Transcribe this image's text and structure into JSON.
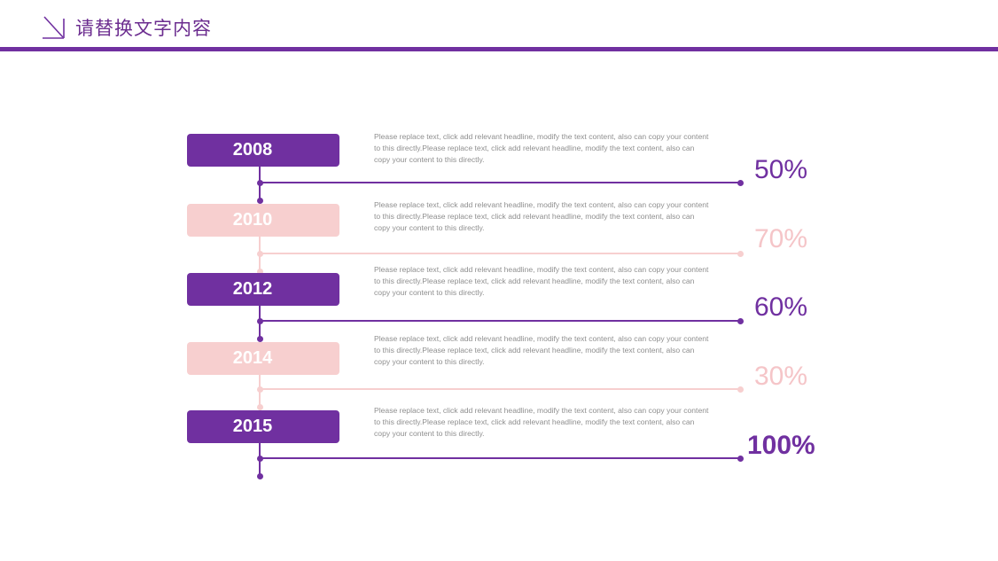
{
  "header": {
    "title": "请替换文字内容",
    "accent": "#7030a0"
  },
  "colors": {
    "primary": "#7030a0",
    "secondary": "#f7cfcf",
    "secondary_text": "#f5c5c8",
    "description": "#8f8f8f"
  },
  "timeline": [
    {
      "year": "2008",
      "description": "Please replace text, click add relevant headline, modify the text content, also can copy your content to this directly.Please replace text, click add relevant headline, modify the text content, also can copy your content to this directly.",
      "percent": "50%",
      "value": 50,
      "style": "primary"
    },
    {
      "year": "2010",
      "description": "Please replace text, click add relevant headline, modify the text content, also can copy your content to this directly.Please replace text, click add relevant headline, modify the text content, also can copy your content to this directly.",
      "percent": "70%",
      "value": 70,
      "style": "secondary"
    },
    {
      "year": "2012",
      "description": "Please replace text, click add relevant headline, modify the text content, also can copy your content to this directly.Please replace text, click add relevant headline, modify the text content, also can copy your content to this directly.",
      "percent": "60%",
      "value": 60,
      "style": "primary"
    },
    {
      "year": "2014",
      "description": "Please replace text, click add relevant headline, modify the text content, also can copy your content to this directly.Please replace text, click add relevant headline, modify the text content, also can copy your content to this directly.",
      "percent": "30%",
      "value": 30,
      "style": "secondary"
    },
    {
      "year": "2015",
      "description": "Please replace text, click add relevant headline, modify the text content, also can copy your content to this directly.Please replace text, click add relevant headline, modify the text content, also can copy your content to this directly.",
      "percent": "100%",
      "value": 100,
      "style": "primary"
    }
  ]
}
